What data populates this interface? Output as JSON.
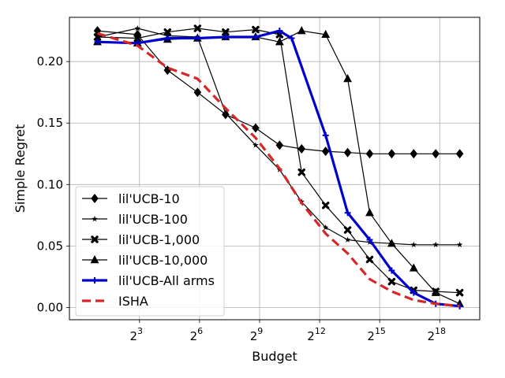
{
  "chart_data": {
    "type": "line",
    "xlabel": "Budget",
    "ylabel": "Simple Regret",
    "x_scale": "log2",
    "xlim_exponent": [
      -0.5,
      20
    ],
    "ylim": [
      -0.01,
      0.236
    ],
    "grid": true,
    "legend_position": "lower-left",
    "x_ticks": [
      {
        "base": "2",
        "exp": "3",
        "value": 3
      },
      {
        "base": "2",
        "exp": "6",
        "value": 6
      },
      {
        "base": "2",
        "exp": "9",
        "value": 9
      },
      {
        "base": "2",
        "exp": "12",
        "value": 12
      },
      {
        "base": "2",
        "exp": "15",
        "value": 15
      },
      {
        "base": "2",
        "exp": "18",
        "value": 18
      }
    ],
    "y_ticks": [
      {
        "label": "0.00",
        "value": 0.0
      },
      {
        "label": "0.05",
        "value": 0.05
      },
      {
        "label": "0.10",
        "value": 0.1
      },
      {
        "label": "0.15",
        "value": 0.15
      },
      {
        "label": "0.20",
        "value": 0.2
      }
    ],
    "series": [
      {
        "name": "lil'UCB-10",
        "color": "#000000",
        "marker": "diamond",
        "line": "solid",
        "x": [
          0.9,
          2.9,
          4.4,
          5.9,
          7.3,
          8.8,
          10.0,
          11.1,
          12.3,
          13.4,
          14.5,
          15.6,
          16.7,
          17.8,
          19.0
        ],
        "y": [
          0.225,
          0.222,
          0.193,
          0.175,
          0.157,
          0.146,
          0.132,
          0.129,
          0.127,
          0.126,
          0.125,
          0.125,
          0.125,
          0.125,
          0.125
        ]
      },
      {
        "name": "lil'UCB-100",
        "color": "#000000",
        "marker": "star",
        "line": "solid",
        "x": [
          0.9,
          2.9,
          4.4,
          5.9,
          7.3,
          8.8,
          10.0,
          11.1,
          12.3,
          13.4,
          14.5,
          15.6,
          16.7,
          17.8,
          19.0
        ],
        "y": [
          0.22,
          0.227,
          0.221,
          0.22,
          0.158,
          0.132,
          0.112,
          0.086,
          0.065,
          0.055,
          0.053,
          0.052,
          0.051,
          0.051,
          0.051
        ]
      },
      {
        "name": "lil'UCB-1,000",
        "color": "#000000",
        "marker": "x",
        "line": "solid",
        "x": [
          0.9,
          2.9,
          4.4,
          5.9,
          7.3,
          8.8,
          10.0,
          11.1,
          12.3,
          13.4,
          14.5,
          15.6,
          16.7,
          17.8,
          19.0
        ],
        "y": [
          0.22,
          0.219,
          0.224,
          0.227,
          0.224,
          0.226,
          0.222,
          0.11,
          0.083,
          0.063,
          0.039,
          0.021,
          0.014,
          0.013,
          0.012
        ]
      },
      {
        "name": "lil'UCB-10,000",
        "color": "#000000",
        "marker": "triangle",
        "line": "solid",
        "x": [
          0.9,
          2.9,
          4.4,
          5.9,
          7.3,
          8.8,
          10.0,
          11.1,
          12.3,
          13.4,
          14.5,
          15.6,
          16.7,
          17.8,
          19.0
        ],
        "y": [
          0.216,
          0.215,
          0.218,
          0.219,
          0.22,
          0.22,
          0.216,
          0.225,
          0.222,
          0.186,
          0.077,
          0.052,
          0.032,
          0.012,
          0.003
        ]
      },
      {
        "name": "lil'UCB-All arms",
        "color": "#0000cc",
        "marker": "plus",
        "line": "solid-thick",
        "x": [
          0.9,
          2.9,
          4.4,
          5.9,
          7.3,
          8.8,
          10.0,
          10.6,
          12.3,
          13.4,
          14.5,
          15.6,
          16.7,
          17.8,
          19.0
        ],
        "y": [
          0.216,
          0.215,
          0.219,
          0.219,
          0.22,
          0.22,
          0.225,
          0.219,
          0.14,
          0.077,
          0.055,
          0.03,
          0.012,
          0.003,
          0.001
        ]
      },
      {
        "name": "ISHA",
        "color": "#d62728",
        "marker": "none",
        "line": "dashed",
        "x": [
          0.9,
          2.9,
          4.4,
          5.9,
          7.3,
          8.8,
          10.0,
          11.1,
          12.3,
          13.4,
          14.5,
          15.6,
          16.7,
          17.8,
          19.0
        ],
        "y": [
          0.223,
          0.213,
          0.195,
          0.186,
          0.162,
          0.138,
          0.113,
          0.085,
          0.06,
          0.044,
          0.023,
          0.013,
          0.006,
          0.003,
          0.001
        ]
      }
    ]
  }
}
